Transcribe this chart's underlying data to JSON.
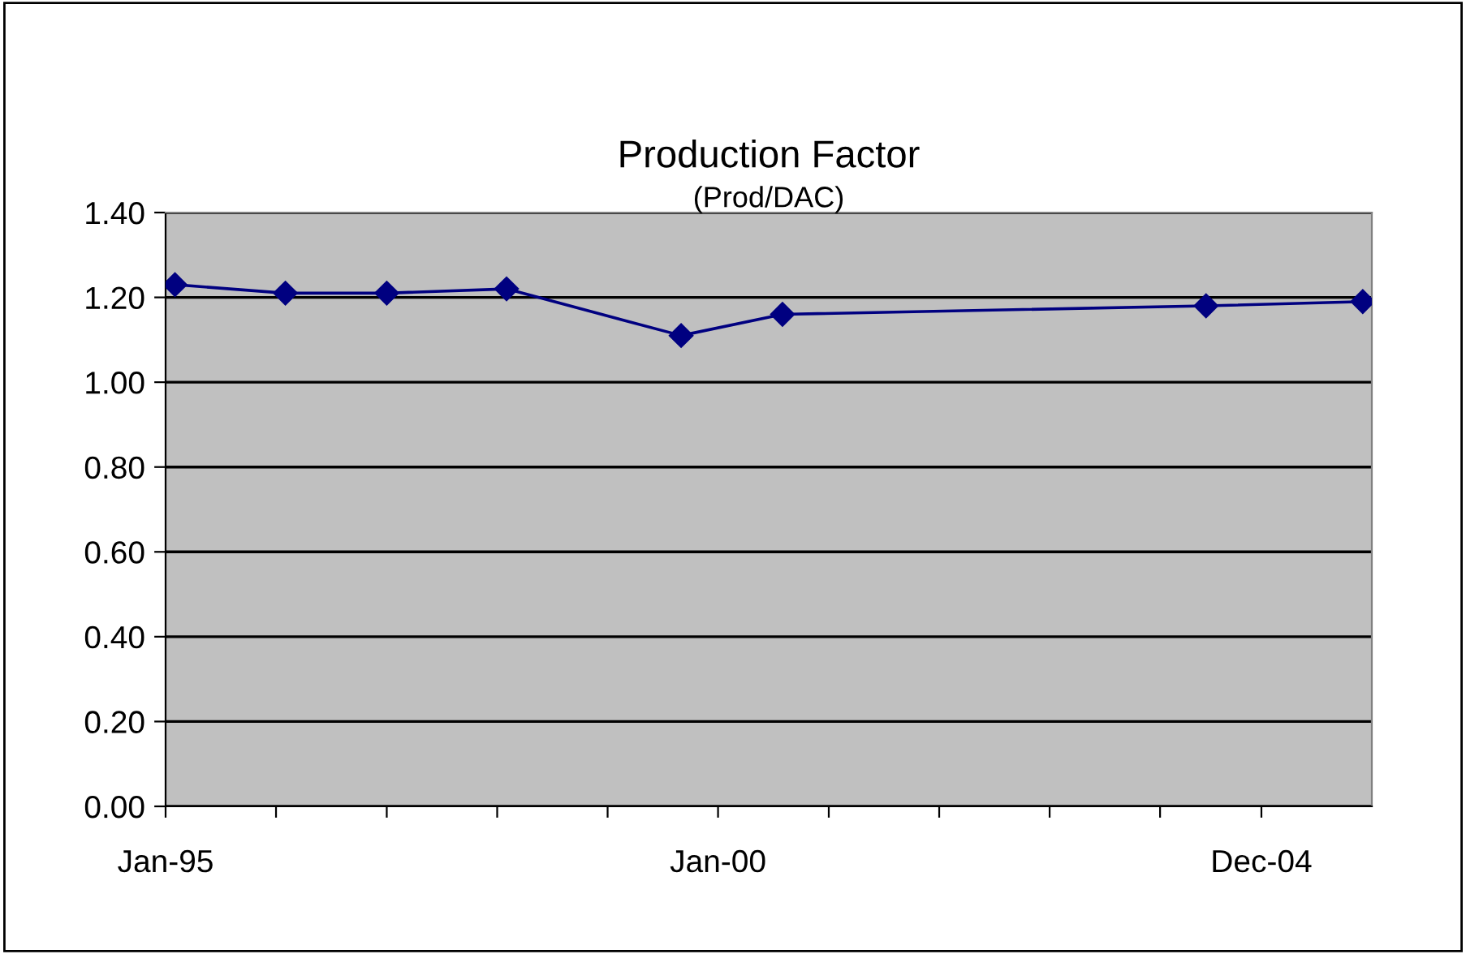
{
  "chart_data": {
    "type": "line",
    "title": "Production Factor",
    "subtitle": "(Prod/DAC)",
    "x": [
      "1995-02",
      "1996-02",
      "1997-01",
      "1998-02",
      "1999-09",
      "2000-08",
      "2004-06",
      "2005-11"
    ],
    "series": [
      {
        "color": "#000080",
        "values": [
          1.23,
          1.21,
          1.21,
          1.22,
          1.11,
          1.16,
          1.18,
          1.19
        ]
      }
    ],
    "marker": "diamond",
    "line_style": "solid",
    "xlim": [
      "1995-01",
      "2005-12"
    ],
    "xticks": [
      {
        "value": "1995-01",
        "label": "Jan-95"
      },
      {
        "value": "1996-01",
        "label": null
      },
      {
        "value": "1997-01",
        "label": null
      },
      {
        "value": "1998-01",
        "label": null
      },
      {
        "value": "1999-01",
        "label": null
      },
      {
        "value": "2000-01",
        "label": "Jan-00"
      },
      {
        "value": "2001-01",
        "label": null
      },
      {
        "value": "2002-01",
        "label": null
      },
      {
        "value": "2003-01",
        "label": null
      },
      {
        "value": "2004-01",
        "label": null
      },
      {
        "value": "2004-12",
        "label": "Dec-04"
      }
    ],
    "ylim": [
      0,
      1.4
    ],
    "yticks": [
      {
        "value": 0,
        "label": "0.00"
      },
      {
        "value": 0.2,
        "label": "0.20"
      },
      {
        "value": 0.4,
        "label": "0.40"
      },
      {
        "value": 0.6,
        "label": "0.60"
      },
      {
        "value": 0.8,
        "label": "0.80"
      },
      {
        "value": 1.0,
        "label": "1.00"
      },
      {
        "value": 1.2,
        "label": "1.20"
      },
      {
        "value": 1.4,
        "label": "1.40"
      }
    ],
    "grid": "y",
    "legend": false
  }
}
